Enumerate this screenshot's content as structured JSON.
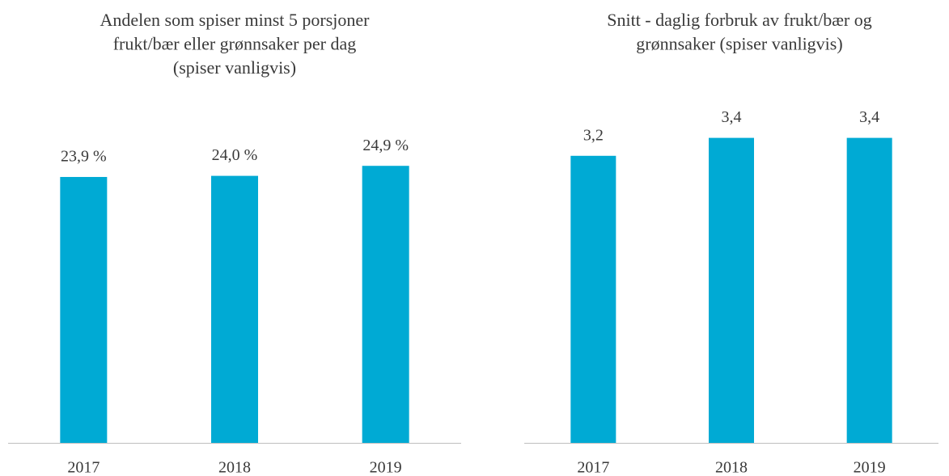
{
  "chart_data": [
    {
      "type": "bar",
      "title": [
        "Andelen som spiser minst 5 porsjoner",
        "frukt/bær eller grønnsaker per dag",
        "(spiser vanligvis)"
      ],
      "categories": [
        "2017",
        "2018",
        "2019"
      ],
      "values": [
        23.9,
        24.0,
        24.9
      ],
      "value_labels": [
        "23,9 %",
        "24,0 %",
        "24,9 %"
      ],
      "color": "#00aad4",
      "ylim": [
        0,
        30
      ]
    },
    {
      "type": "bar",
      "title": [
        "Snitt - daglig forbruk av frukt/bær og",
        "grønnsaker (spiser vanligvis)"
      ],
      "categories": [
        "2017",
        "2018",
        "2019"
      ],
      "values": [
        3.2,
        3.4,
        3.4
      ],
      "value_labels": [
        "3,2",
        "3,4",
        "3,4"
      ],
      "color": "#00aad4",
      "ylim": [
        0,
        4
      ]
    }
  ]
}
